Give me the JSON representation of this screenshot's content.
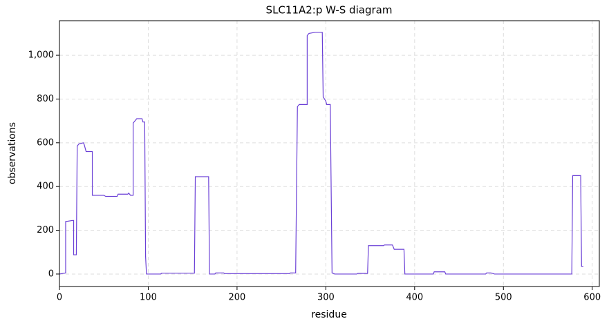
{
  "chart_data": {
    "type": "line",
    "title": "SLC11A2:p W-S diagram",
    "x_label": "residue",
    "y_label": "observations",
    "color": "#6a3fd6",
    "grid": true,
    "x": [
      0,
      7,
      7,
      15,
      16,
      16,
      19,
      20,
      22,
      27,
      28,
      30,
      37,
      37,
      50,
      52,
      65,
      66,
      77,
      78,
      80,
      83,
      83,
      87,
      93,
      94,
      96,
      97,
      98,
      114,
      115,
      152,
      153,
      168,
      169,
      175,
      176,
      185,
      186,
      259,
      260,
      266,
      268,
      270,
      279,
      279,
      281,
      288,
      296,
      297,
      300,
      301,
      305,
      307,
      310,
      335,
      336,
      347,
      348,
      355,
      365,
      366,
      375,
      377,
      388,
      389,
      421,
      422,
      434,
      435,
      480,
      481,
      486,
      490,
      577,
      578,
      587,
      588,
      590
    ],
    "values": [
      0,
      5,
      240,
      245,
      245,
      88,
      88,
      585,
      595,
      600,
      590,
      560,
      560,
      360,
      360,
      355,
      355,
      365,
      365,
      370,
      360,
      360,
      690,
      710,
      710,
      695,
      695,
      80,
      0,
      0,
      4,
      4,
      445,
      445,
      0,
      0,
      5,
      5,
      2,
      2,
      5,
      5,
      765,
      775,
      775,
      1090,
      1100,
      1105,
      1105,
      810,
      790,
      775,
      775,
      5,
      0,
      0,
      3,
      3,
      130,
      130,
      130,
      133,
      133,
      113,
      113,
      0,
      0,
      10,
      10,
      0,
      0,
      5,
      5,
      0,
      0,
      450,
      450,
      35,
      35
    ],
    "xlim": [
      0,
      608
    ],
    "ylim": [
      -57,
      1158
    ],
    "xticks": [
      0,
      100,
      200,
      300,
      400,
      500,
      600
    ],
    "yticks": [
      0,
      200,
      400,
      600,
      800,
      {
        "value": 1000,
        "label": "1,000"
      }
    ]
  }
}
